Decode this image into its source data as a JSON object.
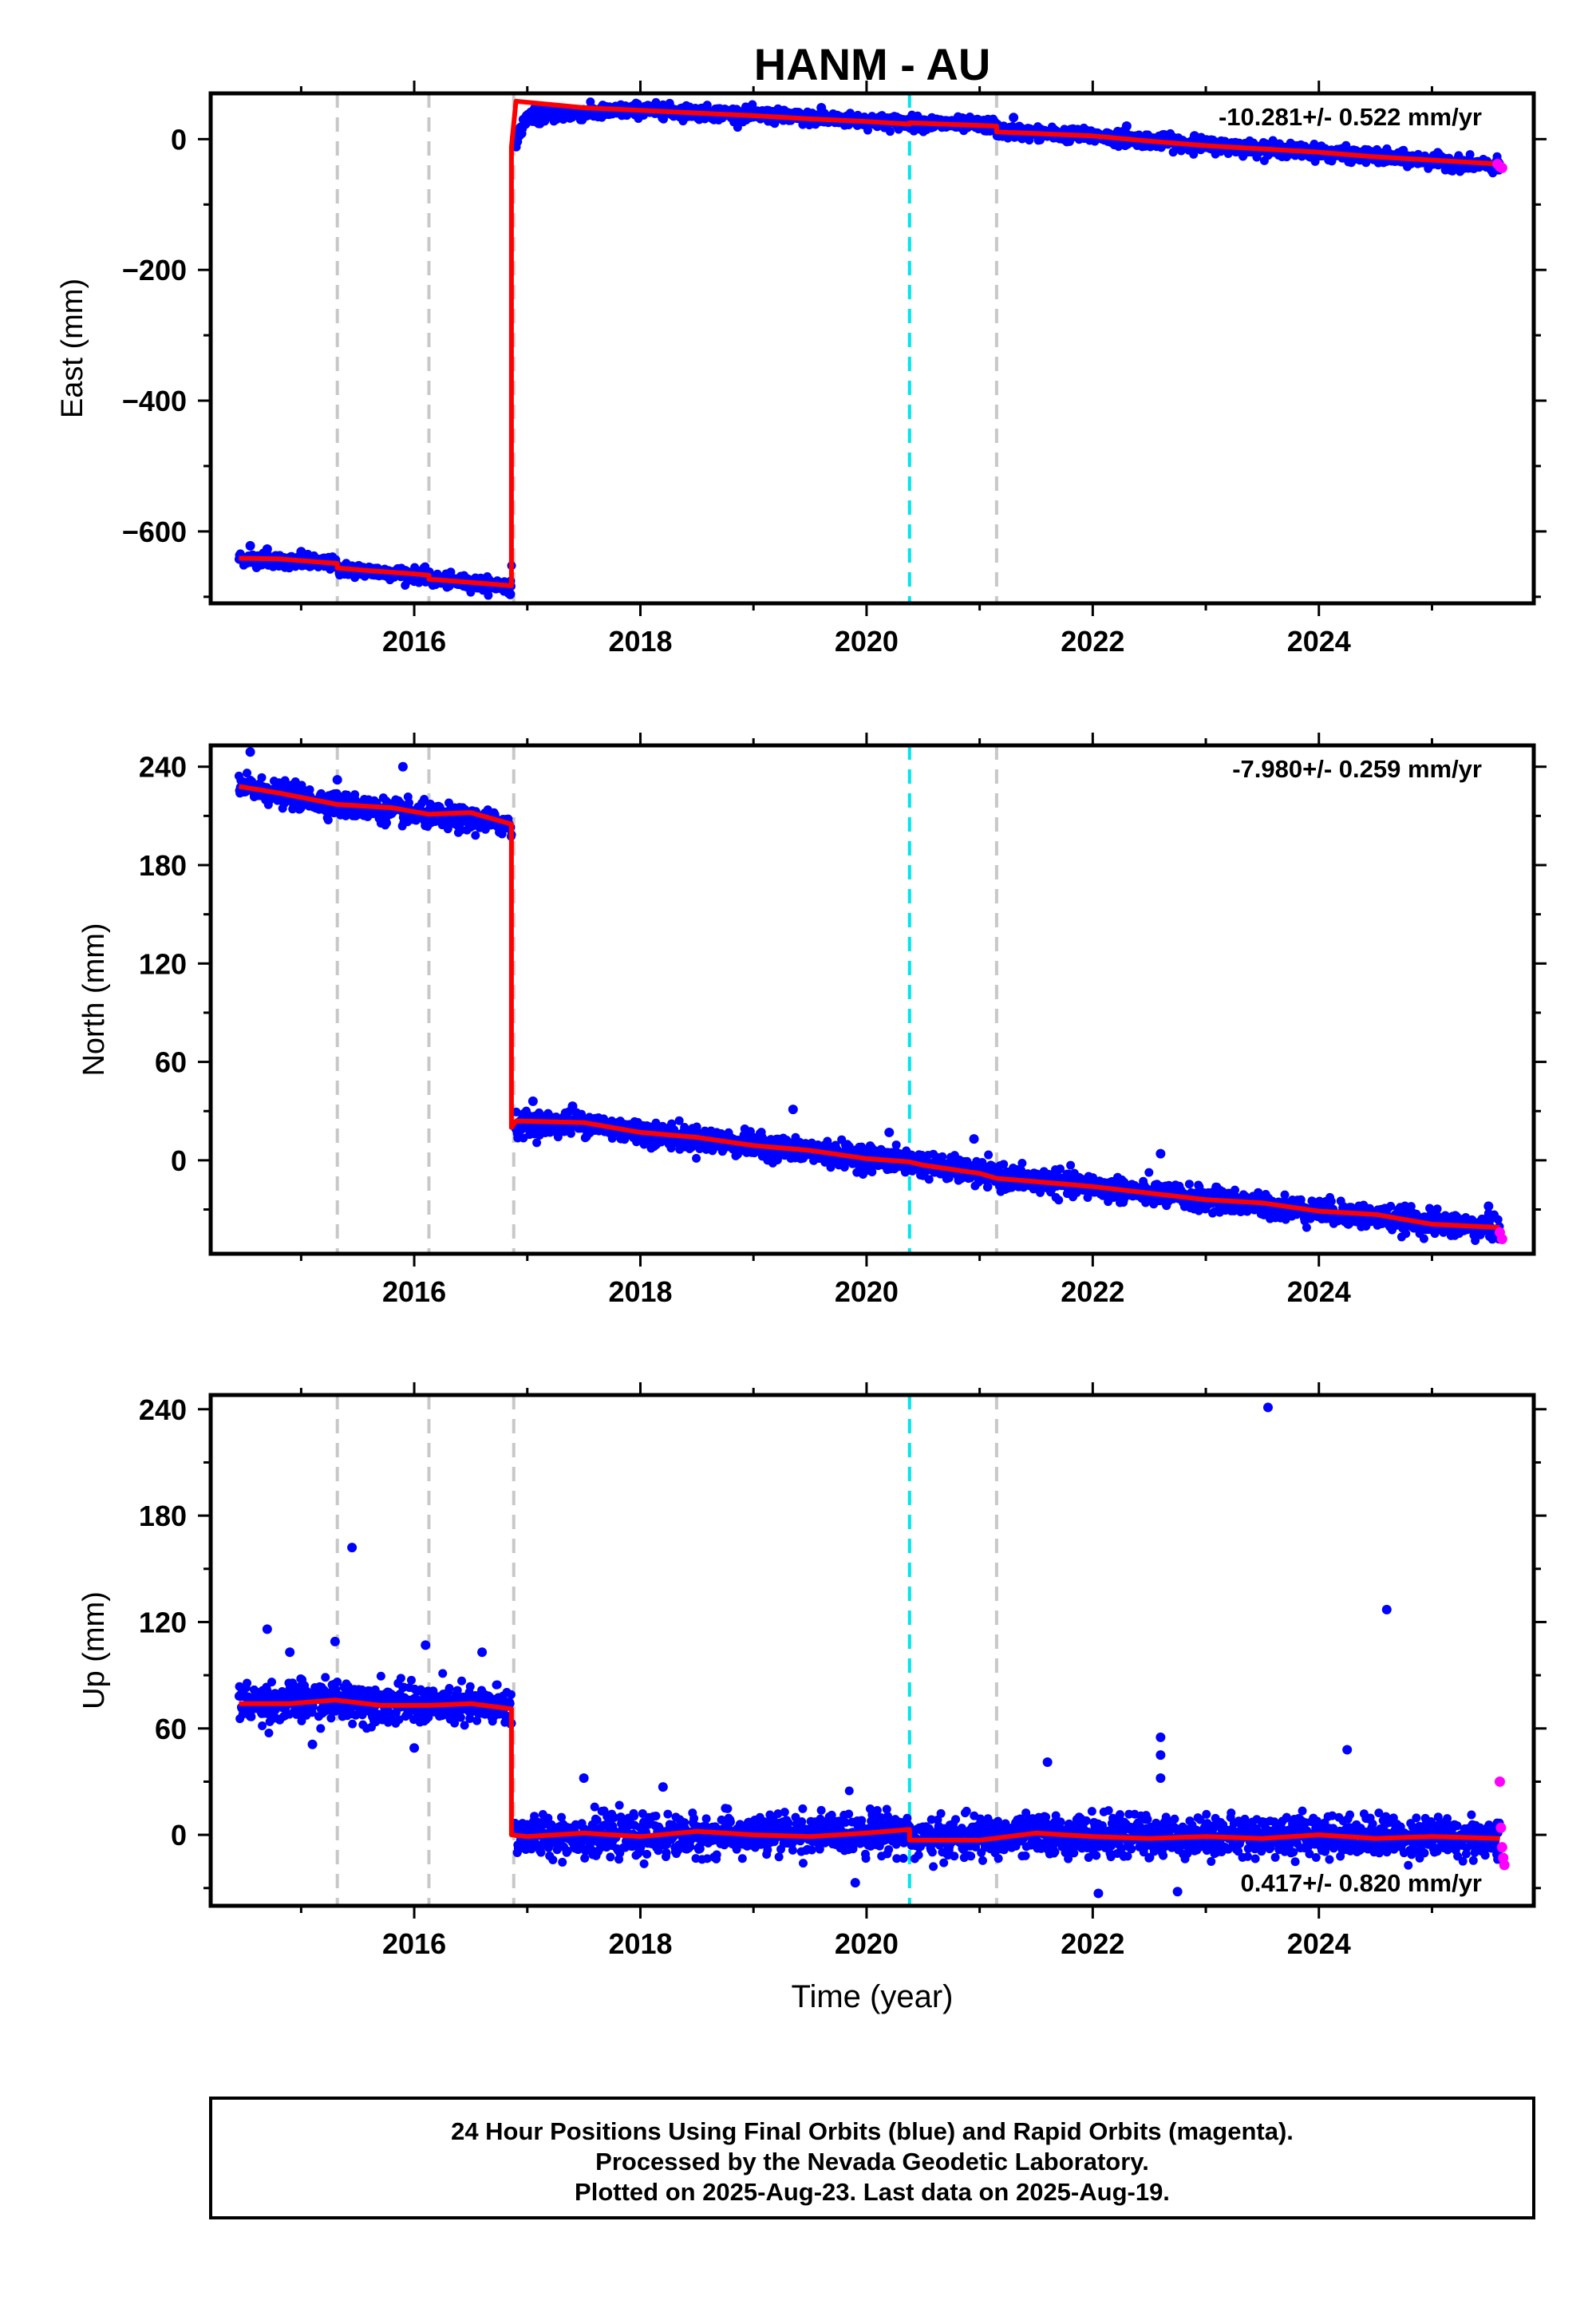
{
  "chart_data": {
    "type": "scatter",
    "title": "HANM - AU",
    "xlabel": "Time (year)",
    "xlim": [
      2014.2,
      2025.9
    ],
    "xticks": [
      2016,
      2018,
      2020,
      2022,
      2024
    ],
    "colors": {
      "final": "#0000ff",
      "rapid": "#ff00ff",
      "model": "#ff0000",
      "event_equipment": "#c8c8c8",
      "event_other": "#00e5ee"
    },
    "events": [
      {
        "t": 2015.32,
        "color": "#c8c8c8"
      },
      {
        "t": 2016.13,
        "color": "#c8c8c8"
      },
      {
        "t": 2016.88,
        "color": "#c8c8c8"
      },
      {
        "t": 2020.38,
        "color": "#00e5ee"
      },
      {
        "t": 2021.15,
        "color": "#c8c8c8"
      }
    ],
    "panels": [
      {
        "ylabel": "East (mm)",
        "ylim": [
          -710,
          70
        ],
        "yticks": [
          -600,
          -400,
          -200,
          0
        ],
        "rate": "-10.281+/- 0.522 mm/yr",
        "rate_position": "top-right",
        "model": [
          [
            2014.45,
            -641
          ],
          [
            2014.8,
            -642
          ],
          [
            2015.1,
            -646
          ],
          [
            2015.32,
            -649
          ],
          [
            2015.32,
            -656
          ],
          [
            2015.6,
            -660
          ],
          [
            2016.0,
            -665
          ],
          [
            2016.13,
            -667
          ],
          [
            2016.13,
            -673
          ],
          [
            2016.5,
            -678
          ],
          [
            2016.86,
            -683
          ],
          [
            2016.86,
            -12
          ],
          [
            2016.9,
            58
          ],
          [
            2017.5,
            48
          ],
          [
            2018.0,
            44
          ],
          [
            2018.5,
            40
          ],
          [
            2019.0,
            36
          ],
          [
            2019.5,
            31
          ],
          [
            2020.0,
            27
          ],
          [
            2020.38,
            23
          ],
          [
            2020.38,
            25
          ],
          [
            2021.15,
            20
          ],
          [
            2021.15,
            11
          ],
          [
            2022.0,
            5
          ],
          [
            2022.5,
            -3
          ],
          [
            2023.0,
            -10
          ],
          [
            2023.5,
            -15
          ],
          [
            2024.0,
            -20
          ],
          [
            2024.5,
            -27
          ],
          [
            2025.0,
            -32
          ],
          [
            2025.6,
            -38
          ]
        ],
        "final_trend": [
          [
            2014.45,
            -641
          ],
          [
            2015.32,
            -650
          ],
          [
            2015.32,
            -657
          ],
          [
            2016.13,
            -668
          ],
          [
            2016.13,
            -673
          ],
          [
            2016.86,
            -684
          ],
          [
            2016.88,
            -10
          ],
          [
            2017.0,
            35
          ],
          [
            2017.5,
            40
          ],
          [
            2018.0,
            45
          ],
          [
            2018.5,
            41
          ],
          [
            2019.0,
            37
          ],
          [
            2019.5,
            32
          ],
          [
            2020.0,
            28
          ],
          [
            2020.38,
            25
          ],
          [
            2021.15,
            21
          ],
          [
            2021.15,
            12
          ],
          [
            2022.0,
            5
          ],
          [
            2022.5,
            -2
          ],
          [
            2023.0,
            -9
          ],
          [
            2023.5,
            -14
          ],
          [
            2024.0,
            -20
          ],
          [
            2024.5,
            -27
          ],
          [
            2025.0,
            -33
          ],
          [
            2025.6,
            -42
          ]
        ],
        "scatter_sd": 5,
        "outliers": [
          [
            2014.55,
            -622
          ],
          [
            2014.7,
            -627
          ],
          [
            2015.0,
            -631
          ],
          [
            2016.85,
            -696
          ],
          [
            2017.1,
            24
          ],
          [
            2018.2,
            52
          ],
          [
            2019.6,
            48
          ],
          [
            2021.3,
            33
          ],
          [
            2022.3,
            20
          ],
          [
            2022.9,
            5
          ]
        ],
        "rapid": [
          [
            2025.58,
            -38
          ],
          [
            2025.6,
            -42
          ],
          [
            2025.62,
            -44
          ]
        ]
      },
      {
        "ylabel": "North (mm)",
        "ylim": [
          -57,
          253
        ],
        "yticks": [
          0,
          60,
          120,
          180,
          240
        ],
        "rate": "-7.980+/- 0.259 mm/yr",
        "rate_position": "top-right",
        "model": [
          [
            2014.45,
            228
          ],
          [
            2014.8,
            224
          ],
          [
            2015.32,
            217
          ],
          [
            2015.8,
            215
          ],
          [
            2016.13,
            211
          ],
          [
            2016.5,
            212
          ],
          [
            2016.86,
            205
          ],
          [
            2016.86,
            20
          ],
          [
            2016.9,
            24
          ],
          [
            2017.5,
            23
          ],
          [
            2018.0,
            17
          ],
          [
            2018.5,
            14
          ],
          [
            2019.0,
            9
          ],
          [
            2019.5,
            6
          ],
          [
            2020.0,
            1
          ],
          [
            2020.38,
            -1
          ],
          [
            2020.5,
            -3
          ],
          [
            2021.0,
            -8
          ],
          [
            2021.15,
            -11
          ],
          [
            2021.5,
            -13
          ],
          [
            2022.0,
            -16
          ],
          [
            2022.5,
            -20
          ],
          [
            2023.0,
            -24
          ],
          [
            2023.5,
            -26
          ],
          [
            2024.0,
            -31
          ],
          [
            2024.5,
            -33
          ],
          [
            2025.0,
            -39
          ],
          [
            2025.6,
            -41
          ]
        ],
        "final_trend": [
          [
            2014.45,
            228
          ],
          [
            2015.32,
            217
          ],
          [
            2016.13,
            210
          ],
          [
            2016.86,
            205
          ],
          [
            2016.88,
            22
          ],
          [
            2017.5,
            23
          ],
          [
            2018.0,
            17
          ],
          [
            2019.0,
            9
          ],
          [
            2020.38,
            -1
          ],
          [
            2021.15,
            -10
          ],
          [
            2022.0,
            -16
          ],
          [
            2023.0,
            -24
          ],
          [
            2024.0,
            -31
          ],
          [
            2025.0,
            -38
          ],
          [
            2025.6,
            -42
          ]
        ],
        "scatter_sd": 3.5,
        "outliers": [
          [
            2014.55,
            249
          ],
          [
            2015.32,
            232
          ],
          [
            2015.9,
            240
          ],
          [
            2017.05,
            36
          ],
          [
            2017.4,
            33
          ],
          [
            2019.35,
            31
          ],
          [
            2020.2,
            17
          ],
          [
            2020.95,
            13
          ],
          [
            2022.6,
            4
          ],
          [
            2025.5,
            -28
          ]
        ],
        "rapid": [
          [
            2025.6,
            -44
          ],
          [
            2025.62,
            -48
          ]
        ]
      },
      {
        "ylabel": "Up (mm)",
        "ylim": [
          -40,
          248
        ],
        "yticks": [
          0,
          60,
          120,
          180,
          240
        ],
        "rate": "0.417+/- 0.820 mm/yr",
        "rate_position": "bottom-right",
        "model": [
          [
            2014.45,
            74
          ],
          [
            2014.9,
            74
          ],
          [
            2015.3,
            76
          ],
          [
            2015.7,
            73
          ],
          [
            2016.13,
            73
          ],
          [
            2016.5,
            74
          ],
          [
            2016.86,
            71
          ],
          [
            2016.86,
            0
          ],
          [
            2017.0,
            -1
          ],
          [
            2017.5,
            1
          ],
          [
            2018.0,
            -1
          ],
          [
            2018.5,
            2
          ],
          [
            2019.0,
            0
          ],
          [
            2019.5,
            -1
          ],
          [
            2020.0,
            1
          ],
          [
            2020.38,
            3
          ],
          [
            2020.38,
            -3
          ],
          [
            2021.0,
            -3
          ],
          [
            2021.5,
            1
          ],
          [
            2022.0,
            -1
          ],
          [
            2022.5,
            -2
          ],
          [
            2023.0,
            -1
          ],
          [
            2023.5,
            -2
          ],
          [
            2024.0,
            0
          ],
          [
            2024.5,
            -2
          ],
          [
            2025.0,
            -1
          ],
          [
            2025.6,
            -2
          ]
        ],
        "final_trend": [
          [
            2014.45,
            74
          ],
          [
            2015.3,
            76
          ],
          [
            2016.13,
            73
          ],
          [
            2016.86,
            72
          ],
          [
            2016.88,
            0
          ],
          [
            2018.0,
            -1
          ],
          [
            2019.0,
            0
          ],
          [
            2020.38,
            2
          ],
          [
            2020.4,
            -3
          ],
          [
            2021.5,
            0
          ],
          [
            2023.0,
            -1
          ],
          [
            2024.0,
            0
          ],
          [
            2025.6,
            -2
          ]
        ],
        "scatter_sd": 5.5,
        "outliers": [
          [
            2014.7,
            116
          ],
          [
            2015.3,
            109
          ],
          [
            2015.45,
            162
          ],
          [
            2016.1,
            107
          ],
          [
            2014.9,
            103
          ],
          [
            2015.1,
            51
          ],
          [
            2016.0,
            49
          ],
          [
            2016.6,
            103
          ],
          [
            2017.5,
            32
          ],
          [
            2018.2,
            27
          ],
          [
            2019.9,
            -27
          ],
          [
            2021.6,
            41
          ],
          [
            2022.05,
            -33
          ],
          [
            2022.6,
            55
          ],
          [
            2022.6,
            45
          ],
          [
            2022.6,
            32
          ],
          [
            2022.75,
            -32
          ],
          [
            2023.55,
            241
          ],
          [
            2024.25,
            48
          ],
          [
            2024.6,
            127
          ]
        ],
        "rapid": [
          [
            2025.6,
            30
          ],
          [
            2025.61,
            4
          ],
          [
            2025.62,
            -7
          ],
          [
            2025.63,
            -13
          ],
          [
            2025.64,
            -17
          ]
        ]
      }
    ]
  },
  "footer": {
    "line1": "24 Hour Positions Using Final Orbits (blue) and Rapid Orbits (magenta).",
    "line2": "Processed by the Nevada Geodetic Laboratory.",
    "line3": "Plotted on 2025-Aug-23. Last data on 2025-Aug-19."
  }
}
